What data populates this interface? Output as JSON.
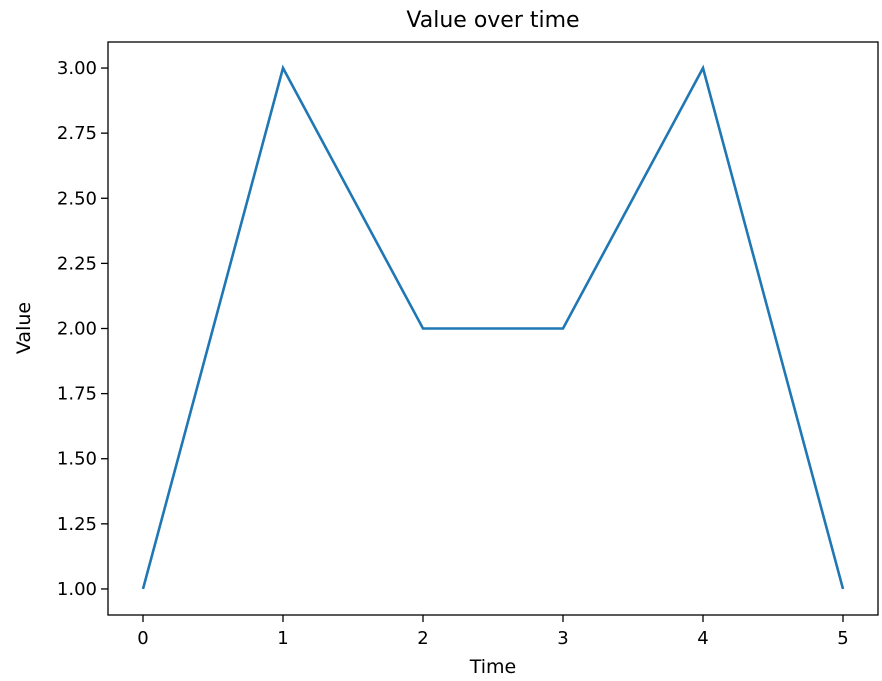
{
  "chart_data": {
    "type": "line",
    "title": "Value over time",
    "xlabel": "Time",
    "ylabel": "Value",
    "x": [
      0,
      1,
      2,
      3,
      4,
      5
    ],
    "series": [
      {
        "values": [
          1,
          3,
          2,
          2,
          3,
          1
        ],
        "color": "#1f77b4"
      }
    ],
    "xlim": [
      -0.25,
      5.25
    ],
    "ylim": [
      0.9,
      3.1
    ],
    "xticks": [
      0,
      1,
      2,
      3,
      4,
      5
    ],
    "xtick_labels": [
      "0",
      "1",
      "2",
      "3",
      "4",
      "5"
    ],
    "yticks": [
      1.0,
      1.25,
      1.5,
      1.75,
      2.0,
      2.25,
      2.5,
      2.75,
      3.0
    ],
    "ytick_labels": [
      "1.00",
      "1.25",
      "1.50",
      "1.75",
      "2.00",
      "2.25",
      "2.50",
      "2.75",
      "3.00"
    ],
    "grid": false,
    "legend": "none"
  }
}
